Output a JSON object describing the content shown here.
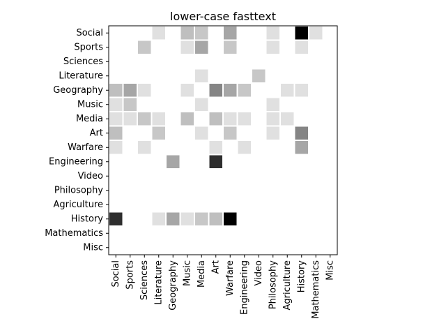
{
  "chart_data": {
    "type": "heatmap",
    "title": "lower-case fasttext",
    "xlabel": "",
    "ylabel": "",
    "rows": [
      "Social",
      "Sports",
      "Sciences",
      "Literature",
      "Geography",
      "Music",
      "Media",
      "Art",
      "Warfare",
      "Engineering",
      "Video",
      "Philosophy",
      "Agriculture",
      "History",
      "Mathematics",
      "Misc"
    ],
    "columns": [
      "Social",
      "Sports",
      "Sciences",
      "Literature",
      "Geography",
      "Music",
      "Media",
      "Art",
      "Warfare",
      "Engineering",
      "Video",
      "Philosophy",
      "Agriculture",
      "History",
      "Mathematics",
      "Misc"
    ],
    "colormap": "Greys",
    "vmin": 0,
    "vmax": 1,
    "grid": false,
    "legend": "none",
    "values": [
      [
        0,
        0,
        0,
        0.12,
        0,
        0.25,
        0.22,
        0,
        0.35,
        0,
        0,
        0.12,
        0,
        1.0,
        0.12,
        0
      ],
      [
        0,
        0,
        0.22,
        0,
        0,
        0.12,
        0.35,
        0,
        0.22,
        0,
        0,
        0.12,
        0,
        0.12,
        0,
        0
      ],
      [
        0,
        0,
        0,
        0,
        0,
        0,
        0,
        0,
        0,
        0,
        0,
        0,
        0,
        0,
        0,
        0
      ],
      [
        0,
        0,
        0,
        0,
        0,
        0,
        0.12,
        0,
        0,
        0,
        0.22,
        0,
        0,
        0,
        0,
        0
      ],
      [
        0.25,
        0.35,
        0.12,
        0,
        0,
        0.12,
        0,
        0.48,
        0.35,
        0.22,
        0,
        0,
        0.12,
        0.12,
        0,
        0
      ],
      [
        0.12,
        0.22,
        0,
        0,
        0,
        0,
        0.12,
        0,
        0,
        0,
        0,
        0.12,
        0,
        0,
        0,
        0
      ],
      [
        0.12,
        0.12,
        0.22,
        0.12,
        0,
        0.25,
        0,
        0.25,
        0.12,
        0.12,
        0,
        0.12,
        0.12,
        0,
        0,
        0
      ],
      [
        0.25,
        0,
        0,
        0.22,
        0,
        0,
        0.12,
        0,
        0.22,
        0,
        0,
        0.12,
        0,
        0.48,
        0,
        0
      ],
      [
        0.12,
        0,
        0.12,
        0,
        0,
        0,
        0,
        0.12,
        0,
        0.12,
        0,
        0,
        0,
        0.35,
        0,
        0
      ],
      [
        0,
        0,
        0,
        0,
        0.35,
        0,
        0,
        0.82,
        0,
        0,
        0,
        0,
        0,
        0,
        0,
        0
      ],
      [
        0,
        0,
        0,
        0,
        0,
        0,
        0,
        0,
        0,
        0,
        0,
        0,
        0,
        0,
        0,
        0
      ],
      [
        0,
        0,
        0,
        0,
        0,
        0,
        0,
        0,
        0,
        0,
        0,
        0,
        0,
        0,
        0,
        0
      ],
      [
        0,
        0,
        0,
        0,
        0,
        0,
        0,
        0,
        0,
        0,
        0,
        0,
        0,
        0,
        0,
        0
      ],
      [
        0.82,
        0,
        0,
        0.12,
        0.35,
        0.12,
        0.22,
        0.25,
        1.0,
        0,
        0,
        0,
        0,
        0,
        0,
        0
      ],
      [
        0,
        0,
        0,
        0,
        0,
        0,
        0,
        0,
        0,
        0,
        0,
        0,
        0,
        0,
        0,
        0
      ],
      [
        0,
        0,
        0,
        0,
        0,
        0,
        0,
        0,
        0,
        0,
        0,
        0,
        0,
        0,
        0,
        0
      ]
    ]
  }
}
